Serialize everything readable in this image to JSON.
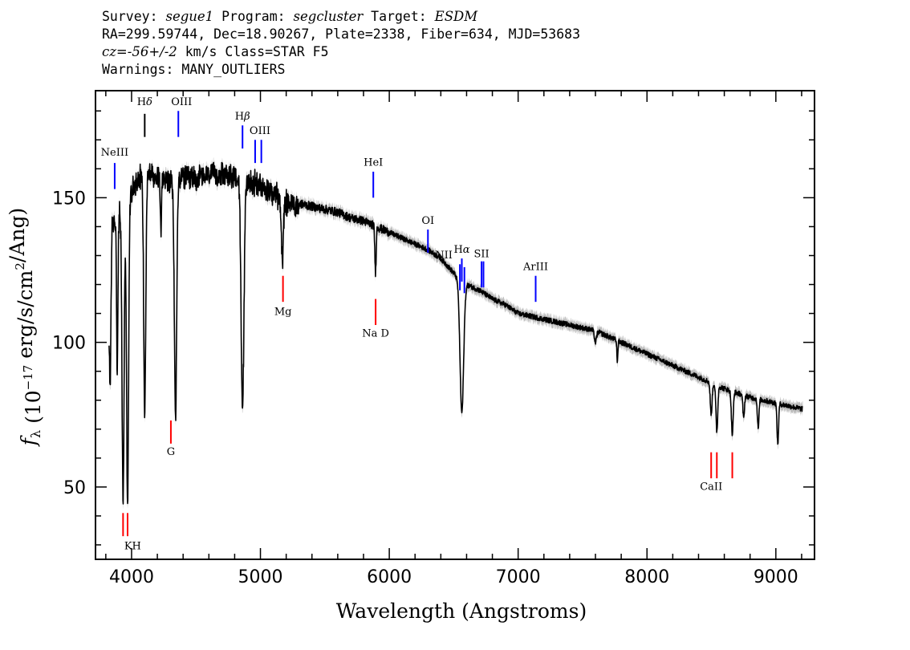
{
  "header": {
    "survey_label": "Survey:",
    "survey": "segue1",
    "program_label": "Program:",
    "program": "segcluster",
    "target_label": "Target:",
    "target": "ESDM",
    "line2": "RA=299.59744, Dec=18.90267, Plate=2338, Fiber=634, MJD=53683",
    "cz_label": "cz=",
    "cz_value": "-56+/-2",
    "cz_rest": " km/s Class=STAR F5",
    "warnings": "Warnings: MANY_OUTLIERS"
  },
  "chart_data": {
    "type": "line",
    "xlabel": "Wavelength (Angstroms)",
    "ylabel": "f_λ (10^-17 erg/s/cm^2/Ang)",
    "xlim": [
      3720,
      9300
    ],
    "ylim": [
      25,
      187
    ],
    "xticks": [
      4000,
      5000,
      6000,
      7000,
      8000,
      9000
    ],
    "yticks": [
      50,
      100,
      150
    ],
    "colors": {
      "spectrum": "#000000",
      "error": "#a0a0a0",
      "emission": "#0000ff",
      "absorption": "#ff0000",
      "sky": "#000000"
    },
    "spectrum_continuum": [
      [
        3820,
        88
      ],
      [
        3850,
        142
      ],
      [
        3900,
        145
      ],
      [
        3950,
        150
      ],
      [
        4000,
        154
      ],
      [
        4050,
        158
      ],
      [
        4100,
        160
      ],
      [
        4200,
        159
      ],
      [
        4300,
        157
      ],
      [
        4400,
        158
      ],
      [
        4500,
        158
      ],
      [
        4600,
        159
      ],
      [
        4700,
        160
      ],
      [
        4800,
        159
      ],
      [
        4900,
        157
      ],
      [
        5000,
        156
      ],
      [
        5100,
        153
      ],
      [
        5200,
        150
      ],
      [
        5300,
        148
      ],
      [
        5400,
        147
      ],
      [
        5500,
        146
      ],
      [
        5600,
        145
      ],
      [
        5700,
        143
      ],
      [
        5800,
        142
      ],
      [
        5900,
        140
      ],
      [
        6000,
        138
      ],
      [
        6100,
        136
      ],
      [
        6200,
        134
      ],
      [
        6300,
        132
      ],
      [
        6400,
        129
      ],
      [
        6500,
        124
      ],
      [
        6550,
        121
      ],
      [
        6600,
        120
      ],
      [
        6700,
        118
      ],
      [
        6800,
        115
      ],
      [
        6900,
        113
      ],
      [
        7000,
        110
      ],
      [
        7200,
        108
      ],
      [
        7400,
        106
      ],
      [
        7600,
        104
      ],
      [
        7800,
        100
      ],
      [
        8000,
        96
      ],
      [
        8200,
        92
      ],
      [
        8400,
        88
      ],
      [
        8600,
        84
      ],
      [
        8800,
        81
      ],
      [
        9000,
        79
      ],
      [
        9200,
        77
      ]
    ],
    "absorption_features": [
      {
        "x": 3835,
        "depth": 28,
        "width": 4
      },
      {
        "x": 3889,
        "depth": 52,
        "width": 5
      },
      {
        "x": 3934,
        "depth": 102,
        "width": 8
      },
      {
        "x": 3969,
        "depth": 105,
        "width": 8
      },
      {
        "x": 4102,
        "depth": 82,
        "width": 8
      },
      {
        "x": 4227,
        "depth": 18,
        "width": 4
      },
      {
        "x": 4341,
        "depth": 82,
        "width": 9
      },
      {
        "x": 4861,
        "depth": 79,
        "width": 11
      },
      {
        "x": 5170,
        "depth": 22,
        "width": 8
      },
      {
        "x": 5893,
        "depth": 16,
        "width": 5
      },
      {
        "x": 6563,
        "depth": 45,
        "width": 14
      },
      {
        "x": 7600,
        "depth": 4,
        "width": 8
      },
      {
        "x": 7770,
        "depth": 7,
        "width": 4
      },
      {
        "x": 8498,
        "depth": 11,
        "width": 7
      },
      {
        "x": 8542,
        "depth": 16,
        "width": 7
      },
      {
        "x": 8662,
        "depth": 15,
        "width": 7
      },
      {
        "x": 8750,
        "depth": 8,
        "width": 6
      },
      {
        "x": 8863,
        "depth": 10,
        "width": 6
      },
      {
        "x": 9015,
        "depth": 14,
        "width": 6
      }
    ],
    "emission_lines": [
      {
        "label": "NeIII",
        "x": 3869,
        "y_low": 153,
        "y_high": 162,
        "label_y": 164.5
      },
      {
        "label": "Hδ",
        "x": 4102,
        "y_low": 171,
        "y_high": 179,
        "label_y": 182,
        "color": "#000000"
      },
      {
        "label": "OIII",
        "x": 4363,
        "y_low": 171,
        "y_high": 180,
        "label_y": 182,
        "label_dx": 4
      },
      {
        "label": "Hβ",
        "x": 4861,
        "y_low": 167,
        "y_high": 175,
        "label_y": 177
      },
      {
        "label": "OIII",
        "x": 4959,
        "y_low": 162,
        "y_high": 170,
        "label_y": 172,
        "label_dx": 6
      },
      {
        "label": "OIII",
        "x": 5007,
        "y_low": 162,
        "y_high": 170
      },
      {
        "label": "HeI",
        "x": 5876,
        "y_low": 150,
        "y_high": 159,
        "label_y": 161
      },
      {
        "label": "OI",
        "x": 6300,
        "y_low": 131,
        "y_high": 139,
        "label_y": 141
      },
      {
        "label": "NII",
        "x": 6548,
        "y_low": 118,
        "y_high": 127,
        "label_y": 129,
        "label_dx": -20
      },
      {
        "label": "Hα",
        "x": 6563,
        "y_low": 121,
        "y_high": 129,
        "label_y": 131
      },
      {
        "label": "NII",
        "x": 6583,
        "y_low": 117,
        "y_high": 126
      },
      {
        "label": "SII",
        "x": 6716,
        "y_low": 119,
        "y_high": 128,
        "label_y": 129.5
      },
      {
        "label": "SII",
        "x": 6731,
        "y_low": 119,
        "y_high": 128,
        "label_text": "NII",
        "label_dx": -12
      },
      {
        "label": "ArIII",
        "x": 7136,
        "y_low": 114,
        "y_high": 123,
        "label_y": 125
      }
    ],
    "absorption_lines": [
      {
        "label": "KH",
        "x": 3934,
        "y_low": 33,
        "y_high": 41,
        "label_y": 28.5,
        "label_dx": 12
      },
      {
        "label": "KH",
        "x": 3969,
        "y_low": 33,
        "y_high": 41
      },
      {
        "label": "G",
        "x": 4305,
        "y_low": 65,
        "y_high": 73,
        "label_y": 61
      },
      {
        "label": "Mg",
        "x": 5175,
        "y_low": 114,
        "y_high": 123,
        "label_y": 109.5
      },
      {
        "label": "Na D",
        "x": 5894,
        "y_low": 106,
        "y_high": 115,
        "label_y": 102
      },
      {
        "label": "CaII",
        "x": 8498,
        "y_low": 53,
        "y_high": 62,
        "label_y": 49
      },
      {
        "label": "CaII",
        "x": 8542,
        "y_low": 53,
        "y_high": 62
      },
      {
        "label": "CaII",
        "x": 8662,
        "y_low": 53,
        "y_high": 62
      }
    ],
    "title": "",
    "grid": false
  }
}
